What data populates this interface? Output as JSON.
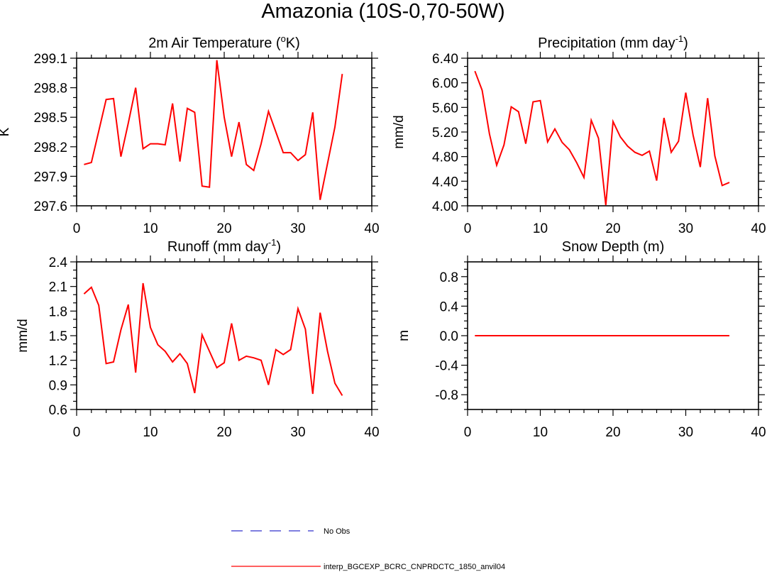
{
  "title": "Amazonia (10S-0,70-50W)",
  "colors": {
    "model": "#ff0000",
    "obs": "#3333cc",
    "frame": "#000000"
  },
  "legend": {
    "obs_label": "No Obs",
    "model_label": "interp_BGCEXP_BCRC_CNPRDCTC_1850_anvil04"
  },
  "chart_data": [
    {
      "type": "line",
      "title_pre": "2m Air Temperature (",
      "title_sup": "o",
      "title_post": "K)",
      "ylabel": "K",
      "xlabel": "",
      "xlim": [
        0,
        40
      ],
      "ylim": [
        297.6,
        299.1
      ],
      "xticks": [
        0,
        10,
        20,
        30,
        40
      ],
      "yticks": [
        297.6,
        297.9,
        298.2,
        298.5,
        298.8,
        299.1
      ],
      "ytick_labels": [
        "297.6",
        "297.9",
        "298.2",
        "298.5",
        "298.8",
        "299.1"
      ],
      "series": [
        {
          "name": "interp_BGCEXP_BCRC_CNPRDCTC_1850_anvil04",
          "x": [
            1,
            2,
            3,
            4,
            5,
            6,
            7,
            8,
            9,
            10,
            11,
            12,
            13,
            14,
            15,
            16,
            17,
            18,
            19,
            20,
            21,
            22,
            23,
            24,
            25,
            26,
            27,
            28,
            29,
            30,
            31,
            32,
            33,
            34,
            35,
            36
          ],
          "y": [
            298.02,
            298.04,
            298.36,
            298.68,
            298.69,
            298.1,
            298.44,
            298.8,
            298.18,
            298.23,
            298.23,
            298.22,
            298.64,
            298.05,
            298.59,
            298.55,
            297.8,
            297.79,
            299.08,
            298.5,
            298.1,
            298.45,
            298.02,
            297.96,
            298.23,
            298.56,
            298.35,
            298.14,
            298.14,
            298.06,
            298.12,
            298.55,
            297.66,
            298.03,
            298.4,
            298.94
          ]
        }
      ]
    },
    {
      "type": "line",
      "title_pre": "Precipitation (mm day",
      "title_sup": "-1",
      "title_post": ")",
      "ylabel": "mm/d",
      "xlabel": "",
      "xlim": [
        0,
        40
      ],
      "ylim": [
        4.0,
        6.4
      ],
      "xticks": [
        0,
        10,
        20,
        30,
        40
      ],
      "yticks": [
        4.0,
        4.4,
        4.8,
        5.2,
        5.6,
        6.0,
        6.4
      ],
      "ytick_labels": [
        "4.00",
        "4.40",
        "4.80",
        "5.20",
        "5.60",
        "6.00",
        "6.40"
      ],
      "series": [
        {
          "name": "interp_BGCEXP_BCRC_CNPRDCTC_1850_anvil04",
          "x": [
            1,
            2,
            3,
            4,
            5,
            6,
            7,
            8,
            9,
            10,
            11,
            12,
            13,
            14,
            15,
            16,
            17,
            18,
            19,
            20,
            21,
            22,
            23,
            24,
            25,
            26,
            27,
            28,
            29,
            30,
            31,
            32,
            33,
            34,
            35,
            36
          ],
          "y": [
            6.19,
            5.88,
            5.17,
            4.66,
            4.99,
            5.61,
            5.53,
            5.01,
            5.69,
            5.71,
            5.04,
            5.25,
            5.03,
            4.91,
            4.7,
            4.46,
            5.39,
            5.1,
            4.01,
            5.37,
            5.12,
            4.97,
            4.87,
            4.82,
            4.89,
            4.41,
            5.43,
            4.87,
            5.05,
            5.84,
            5.15,
            4.63,
            5.75,
            4.81,
            4.33,
            4.38
          ]
        }
      ]
    },
    {
      "type": "line",
      "title_pre": "Runoff (mm day",
      "title_sup": "-1",
      "title_post": ")",
      "ylabel": "mm/d",
      "xlabel": "",
      "xlim": [
        0,
        40
      ],
      "ylim": [
        0.6,
        2.4
      ],
      "xticks": [
        0,
        10,
        20,
        30,
        40
      ],
      "yticks": [
        0.6,
        0.9,
        1.2,
        1.5,
        1.8,
        2.1,
        2.4
      ],
      "ytick_labels": [
        "0.6",
        "0.9",
        "1.2",
        "1.5",
        "1.8",
        "2.1",
        "2.4"
      ],
      "series": [
        {
          "name": "interp_BGCEXP_BCRC_CNPRDCTC_1850_anvil04",
          "x": [
            1,
            2,
            3,
            4,
            5,
            6,
            7,
            8,
            9,
            10,
            11,
            12,
            13,
            14,
            15,
            16,
            17,
            18,
            19,
            20,
            21,
            22,
            23,
            24,
            25,
            26,
            27,
            28,
            29,
            30,
            31,
            32,
            33,
            34,
            35,
            36
          ],
          "y": [
            2.01,
            2.09,
            1.87,
            1.16,
            1.18,
            1.57,
            1.88,
            1.05,
            2.14,
            1.6,
            1.39,
            1.31,
            1.18,
            1.28,
            1.16,
            0.8,
            1.51,
            1.31,
            1.11,
            1.17,
            1.65,
            1.2,
            1.25,
            1.23,
            1.2,
            0.9,
            1.33,
            1.27,
            1.33,
            1.83,
            1.58,
            0.79,
            1.78,
            1.31,
            0.92,
            0.77
          ]
        }
      ]
    },
    {
      "type": "line",
      "title_pre": "Snow Depth (m)",
      "title_sup": "",
      "title_post": "",
      "ylabel": "m",
      "xlabel": "",
      "xlim": [
        0,
        40
      ],
      "ylim": [
        -1.0,
        1.0
      ],
      "xticks": [
        0,
        10,
        20,
        30,
        40
      ],
      "yticks": [
        -0.8,
        -0.4,
        0.0,
        0.4,
        0.8
      ],
      "ytick_labels": [
        "-0.8",
        "-0.4",
        "0.0",
        "0.4",
        "0.8"
      ],
      "series": [
        {
          "name": "interp_BGCEXP_BCRC_CNPRDCTC_1850_anvil04",
          "x": [
            1,
            2,
            3,
            4,
            5,
            6,
            7,
            8,
            9,
            10,
            11,
            12,
            13,
            14,
            15,
            16,
            17,
            18,
            19,
            20,
            21,
            22,
            23,
            24,
            25,
            26,
            27,
            28,
            29,
            30,
            31,
            32,
            33,
            34,
            35,
            36
          ],
          "y": [
            0,
            0,
            0,
            0,
            0,
            0,
            0,
            0,
            0,
            0,
            0,
            0,
            0,
            0,
            0,
            0,
            0,
            0,
            0,
            0,
            0,
            0,
            0,
            0,
            0,
            0,
            0,
            0,
            0,
            0,
            0,
            0,
            0,
            0,
            0,
            0
          ]
        }
      ]
    }
  ]
}
